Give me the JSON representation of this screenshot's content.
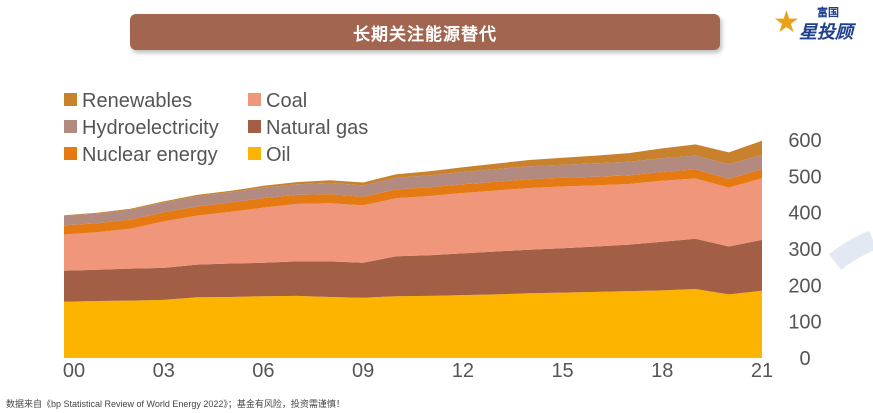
{
  "header": {
    "title": "长期关注能源替代",
    "brand_small": "富国",
    "brand_main": "星投顾"
  },
  "footer": {
    "source": "数据来自《bp Statistical Review of World Energy 2022》；基金有风险，投资需谨慎！"
  },
  "chart_data": {
    "type": "area",
    "stacked": true,
    "x": [
      2000,
      2001,
      2002,
      2003,
      2004,
      2005,
      2006,
      2007,
      2008,
      2009,
      2010,
      2011,
      2012,
      2013,
      2014,
      2015,
      2016,
      2017,
      2018,
      2019,
      2020,
      2021
    ],
    "x_tick_labels": [
      "00",
      "03",
      "06",
      "09",
      "12",
      "15",
      "18",
      "21"
    ],
    "x_tick_values": [
      2000,
      2003,
      2006,
      2009,
      2012,
      2015,
      2018,
      2021
    ],
    "ylim": [
      0,
      600
    ],
    "y_ticks": [
      0,
      100,
      200,
      300,
      400,
      500,
      600
    ],
    "y_tick_labels": [
      "0",
      "100",
      "200",
      "300",
      "400",
      "500",
      "600"
    ],
    "y_axis_side": "right",
    "legend_position": "top-left",
    "legend": [
      {
        "name": "Renewables",
        "color": "#c8812d"
      },
      {
        "name": "Coal",
        "color": "#f0967a"
      },
      {
        "name": "Hydroelectricity",
        "color": "#b38a80"
      },
      {
        "name": "Natural gas",
        "color": "#a35f45"
      },
      {
        "name": "Nuclear energy",
        "color": "#e57a12"
      },
      {
        "name": "Oil",
        "color": "#fcb400"
      }
    ],
    "series": [
      {
        "name": "Oil",
        "color": "#fcb400",
        "values": [
          155,
          157,
          158,
          160,
          167,
          168,
          170,
          171,
          168,
          166,
          170,
          171,
          173,
          175,
          178,
          180,
          182,
          184,
          186,
          190,
          175,
          185
        ]
      },
      {
        "name": "Natural gas",
        "color": "#a35f45",
        "values": [
          85,
          86,
          88,
          88,
          90,
          92,
          92,
          95,
          98,
          96,
          110,
          112,
          115,
          118,
          120,
          122,
          125,
          128,
          134,
          138,
          132,
          140
        ]
      },
      {
        "name": "Coal",
        "color": "#f0967a",
        "values": [
          100,
          103,
          110,
          128,
          135,
          142,
          152,
          158,
          160,
          158,
          160,
          163,
          166,
          168,
          170,
          170,
          168,
          167,
          168,
          166,
          162,
          170
        ]
      },
      {
        "name": "Nuclear energy",
        "color": "#e57a12",
        "values": [
          25,
          25,
          25,
          25,
          25,
          26,
          26,
          25,
          25,
          24,
          24,
          24,
          24,
          24,
          24,
          24,
          24,
          24,
          24,
          25,
          24,
          25
        ]
      },
      {
        "name": "Hydroelectricity",
        "color": "#b38a80",
        "values": [
          26,
          27,
          27,
          27,
          28,
          28,
          29,
          29,
          31,
          31,
          32,
          33,
          34,
          35,
          36,
          36,
          37,
          37,
          38,
          38,
          40,
          39
        ]
      },
      {
        "name": "Renewables",
        "color": "#c8812d",
        "values": [
          2,
          2,
          3,
          3,
          4,
          4,
          5,
          6,
          7,
          8,
          10,
          11,
          13,
          15,
          17,
          19,
          21,
          24,
          27,
          31,
          33,
          39
        ]
      }
    ]
  }
}
